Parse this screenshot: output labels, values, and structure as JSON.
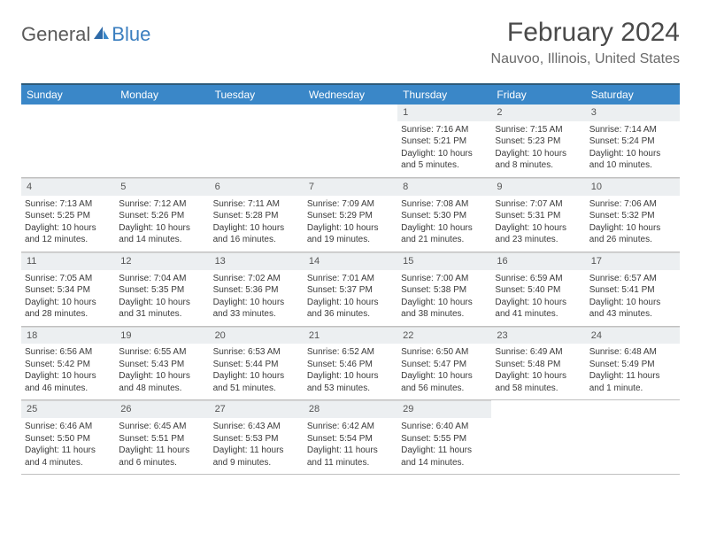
{
  "logo": {
    "part1": "General",
    "part2": "Blue"
  },
  "title": "February 2024",
  "location": "Nauvoo, Illinois, United States",
  "colors": {
    "header_bg": "#3a87c8",
    "header_border": "#2c5a7a",
    "daynum_bg": "#eceff1",
    "text": "#3a3a3a",
    "logo_accent": "#3a7ebf"
  },
  "day_headers": [
    "Sunday",
    "Monday",
    "Tuesday",
    "Wednesday",
    "Thursday",
    "Friday",
    "Saturday"
  ],
  "weeks": [
    [
      {
        "n": "",
        "empty": true
      },
      {
        "n": "",
        "empty": true
      },
      {
        "n": "",
        "empty": true
      },
      {
        "n": "",
        "empty": true
      },
      {
        "n": "1",
        "sunrise": "Sunrise: 7:16 AM",
        "sunset": "Sunset: 5:21 PM",
        "daylight1": "Daylight: 10 hours",
        "daylight2": "and 5 minutes."
      },
      {
        "n": "2",
        "sunrise": "Sunrise: 7:15 AM",
        "sunset": "Sunset: 5:23 PM",
        "daylight1": "Daylight: 10 hours",
        "daylight2": "and 8 minutes."
      },
      {
        "n": "3",
        "sunrise": "Sunrise: 7:14 AM",
        "sunset": "Sunset: 5:24 PM",
        "daylight1": "Daylight: 10 hours",
        "daylight2": "and 10 minutes."
      }
    ],
    [
      {
        "n": "4",
        "sunrise": "Sunrise: 7:13 AM",
        "sunset": "Sunset: 5:25 PM",
        "daylight1": "Daylight: 10 hours",
        "daylight2": "and 12 minutes."
      },
      {
        "n": "5",
        "sunrise": "Sunrise: 7:12 AM",
        "sunset": "Sunset: 5:26 PM",
        "daylight1": "Daylight: 10 hours",
        "daylight2": "and 14 minutes."
      },
      {
        "n": "6",
        "sunrise": "Sunrise: 7:11 AM",
        "sunset": "Sunset: 5:28 PM",
        "daylight1": "Daylight: 10 hours",
        "daylight2": "and 16 minutes."
      },
      {
        "n": "7",
        "sunrise": "Sunrise: 7:09 AM",
        "sunset": "Sunset: 5:29 PM",
        "daylight1": "Daylight: 10 hours",
        "daylight2": "and 19 minutes."
      },
      {
        "n": "8",
        "sunrise": "Sunrise: 7:08 AM",
        "sunset": "Sunset: 5:30 PM",
        "daylight1": "Daylight: 10 hours",
        "daylight2": "and 21 minutes."
      },
      {
        "n": "9",
        "sunrise": "Sunrise: 7:07 AM",
        "sunset": "Sunset: 5:31 PM",
        "daylight1": "Daylight: 10 hours",
        "daylight2": "and 23 minutes."
      },
      {
        "n": "10",
        "sunrise": "Sunrise: 7:06 AM",
        "sunset": "Sunset: 5:32 PM",
        "daylight1": "Daylight: 10 hours",
        "daylight2": "and 26 minutes."
      }
    ],
    [
      {
        "n": "11",
        "sunrise": "Sunrise: 7:05 AM",
        "sunset": "Sunset: 5:34 PM",
        "daylight1": "Daylight: 10 hours",
        "daylight2": "and 28 minutes."
      },
      {
        "n": "12",
        "sunrise": "Sunrise: 7:04 AM",
        "sunset": "Sunset: 5:35 PM",
        "daylight1": "Daylight: 10 hours",
        "daylight2": "and 31 minutes."
      },
      {
        "n": "13",
        "sunrise": "Sunrise: 7:02 AM",
        "sunset": "Sunset: 5:36 PM",
        "daylight1": "Daylight: 10 hours",
        "daylight2": "and 33 minutes."
      },
      {
        "n": "14",
        "sunrise": "Sunrise: 7:01 AM",
        "sunset": "Sunset: 5:37 PM",
        "daylight1": "Daylight: 10 hours",
        "daylight2": "and 36 minutes."
      },
      {
        "n": "15",
        "sunrise": "Sunrise: 7:00 AM",
        "sunset": "Sunset: 5:38 PM",
        "daylight1": "Daylight: 10 hours",
        "daylight2": "and 38 minutes."
      },
      {
        "n": "16",
        "sunrise": "Sunrise: 6:59 AM",
        "sunset": "Sunset: 5:40 PM",
        "daylight1": "Daylight: 10 hours",
        "daylight2": "and 41 minutes."
      },
      {
        "n": "17",
        "sunrise": "Sunrise: 6:57 AM",
        "sunset": "Sunset: 5:41 PM",
        "daylight1": "Daylight: 10 hours",
        "daylight2": "and 43 minutes."
      }
    ],
    [
      {
        "n": "18",
        "sunrise": "Sunrise: 6:56 AM",
        "sunset": "Sunset: 5:42 PM",
        "daylight1": "Daylight: 10 hours",
        "daylight2": "and 46 minutes."
      },
      {
        "n": "19",
        "sunrise": "Sunrise: 6:55 AM",
        "sunset": "Sunset: 5:43 PM",
        "daylight1": "Daylight: 10 hours",
        "daylight2": "and 48 minutes."
      },
      {
        "n": "20",
        "sunrise": "Sunrise: 6:53 AM",
        "sunset": "Sunset: 5:44 PM",
        "daylight1": "Daylight: 10 hours",
        "daylight2": "and 51 minutes."
      },
      {
        "n": "21",
        "sunrise": "Sunrise: 6:52 AM",
        "sunset": "Sunset: 5:46 PM",
        "daylight1": "Daylight: 10 hours",
        "daylight2": "and 53 minutes."
      },
      {
        "n": "22",
        "sunrise": "Sunrise: 6:50 AM",
        "sunset": "Sunset: 5:47 PM",
        "daylight1": "Daylight: 10 hours",
        "daylight2": "and 56 minutes."
      },
      {
        "n": "23",
        "sunrise": "Sunrise: 6:49 AM",
        "sunset": "Sunset: 5:48 PM",
        "daylight1": "Daylight: 10 hours",
        "daylight2": "and 58 minutes."
      },
      {
        "n": "24",
        "sunrise": "Sunrise: 6:48 AM",
        "sunset": "Sunset: 5:49 PM",
        "daylight1": "Daylight: 11 hours",
        "daylight2": "and 1 minute."
      }
    ],
    [
      {
        "n": "25",
        "sunrise": "Sunrise: 6:46 AM",
        "sunset": "Sunset: 5:50 PM",
        "daylight1": "Daylight: 11 hours",
        "daylight2": "and 4 minutes."
      },
      {
        "n": "26",
        "sunrise": "Sunrise: 6:45 AM",
        "sunset": "Sunset: 5:51 PM",
        "daylight1": "Daylight: 11 hours",
        "daylight2": "and 6 minutes."
      },
      {
        "n": "27",
        "sunrise": "Sunrise: 6:43 AM",
        "sunset": "Sunset: 5:53 PM",
        "daylight1": "Daylight: 11 hours",
        "daylight2": "and 9 minutes."
      },
      {
        "n": "28",
        "sunrise": "Sunrise: 6:42 AM",
        "sunset": "Sunset: 5:54 PM",
        "daylight1": "Daylight: 11 hours",
        "daylight2": "and 11 minutes."
      },
      {
        "n": "29",
        "sunrise": "Sunrise: 6:40 AM",
        "sunset": "Sunset: 5:55 PM",
        "daylight1": "Daylight: 11 hours",
        "daylight2": "and 14 minutes."
      },
      {
        "n": "",
        "empty": true
      },
      {
        "n": "",
        "empty": true
      }
    ]
  ]
}
